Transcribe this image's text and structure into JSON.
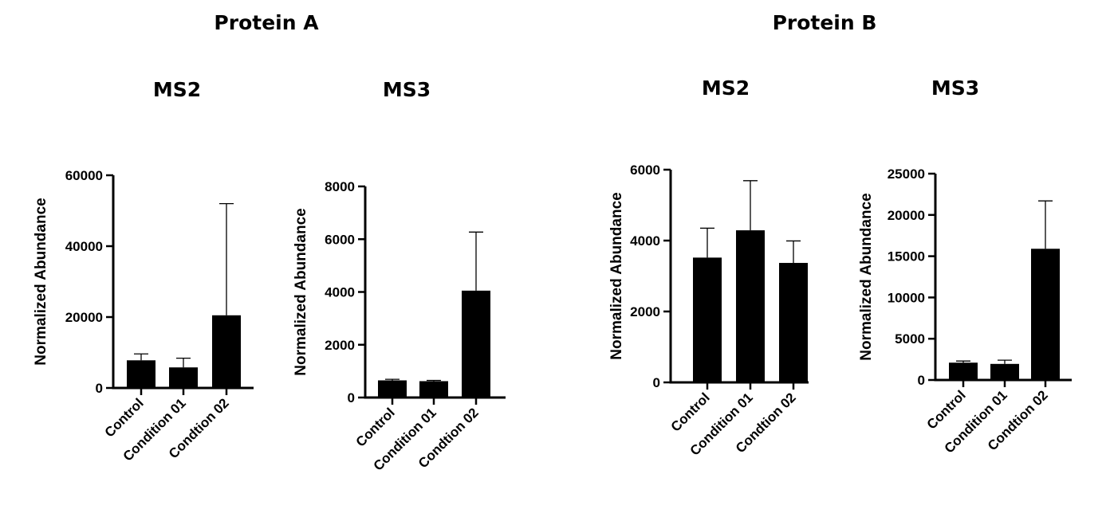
{
  "groups": [
    {
      "title": "Protein A"
    },
    {
      "title": "Protein B"
    }
  ],
  "chart_data": [
    {
      "type": "bar",
      "group": "Protein A",
      "title": "MS2",
      "ylabel": "Normalized Abundance",
      "xlabel": "",
      "categories": [
        "Control",
        "Condition 01",
        "Condtion 02"
      ],
      "values": [
        7800,
        5800,
        20500
      ],
      "errors": [
        1800,
        2600,
        31500
      ],
      "ylim": [
        0,
        60000
      ],
      "yticks": [
        0,
        20000,
        40000,
        60000
      ],
      "ytick_labels": [
        "0",
        "20000",
        "40000",
        "60000"
      ]
    },
    {
      "type": "bar",
      "group": "Protein A",
      "title": "MS3",
      "ylabel": "Normalized Abundance",
      "xlabel": "",
      "categories": [
        "Control",
        "Condition 01",
        "Condtion 02"
      ],
      "values": [
        650,
        620,
        4050
      ],
      "errors": [
        40,
        30,
        2220
      ],
      "ylim": [
        0,
        8000
      ],
      "yticks": [
        0,
        2000,
        4000,
        6000,
        8000
      ],
      "ytick_labels": [
        "0",
        "2000",
        "4000",
        "6000",
        "8000"
      ]
    },
    {
      "type": "bar",
      "group": "Protein B",
      "title": "MS2",
      "ylabel": "Normalized Abundance",
      "xlabel": "",
      "categories": [
        "Control",
        "Condition 01",
        "Condtion 02"
      ],
      "values": [
        3520,
        4290,
        3370
      ],
      "errors": [
        830,
        1400,
        620
      ],
      "ylim": [
        0,
        6000
      ],
      "yticks": [
        0,
        2000,
        4000,
        6000
      ],
      "ytick_labels": [
        "0",
        "2000",
        "4000",
        "6000"
      ]
    },
    {
      "type": "bar",
      "group": "Protein B",
      "title": "MS3",
      "ylabel": "Normalized Abundance",
      "xlabel": "",
      "categories": [
        "Control",
        "Condition 01",
        "Condtion 02"
      ],
      "values": [
        2100,
        1950,
        15900
      ],
      "errors": [
        200,
        450,
        5800
      ],
      "ylim": [
        0,
        25000
      ],
      "yticks": [
        0,
        5000,
        10000,
        15000,
        20000,
        25000
      ],
      "ytick_labels": [
        "0",
        "5000",
        "10000",
        "15000",
        "20000",
        "25000"
      ]
    }
  ]
}
